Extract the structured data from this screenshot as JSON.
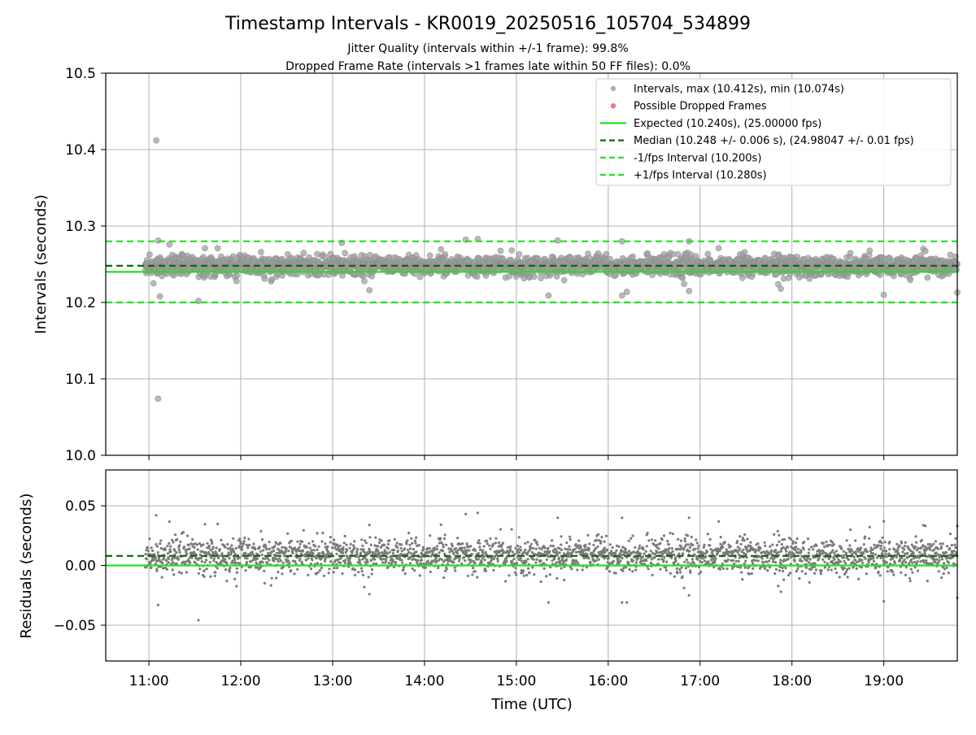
{
  "chart_data": [
    {
      "type": "scatter",
      "title": "Timestamp Intervals - KR0019_20250516_105704_534899",
      "subtitle_lines": [
        "Jitter Quality (intervals within +/-1 frame): 99.8%",
        "Dropped Frame Rate (intervals >1 frames late within 50 FF files): 0.0%"
      ],
      "xlabel": "",
      "ylabel": "Intervals (seconds)",
      "ylim": [
        10.0,
        10.5
      ],
      "yticks": [
        10.0,
        10.1,
        10.2,
        10.3,
        10.4,
        10.5
      ],
      "ytick_labels": [
        "10.0",
        "10.1",
        "10.2",
        "10.3",
        "10.4",
        "10.5"
      ],
      "x_range_hours": [
        10.53,
        19.8
      ],
      "xticks_hours": [
        11,
        12,
        13,
        14,
        15,
        16,
        17,
        18,
        19
      ],
      "grid": true,
      "legend_position": "top-right",
      "legend": [
        {
          "label": "Intervals, max (10.412s), min (10.074s)",
          "kind": "marker",
          "color": "#a0a0a0"
        },
        {
          "label": "Possible Dropped Frames",
          "kind": "marker",
          "color": "#f06060"
        },
        {
          "label": "Expected (10.240s), (25.00000 fps)",
          "kind": "solid",
          "color": "#22e022"
        },
        {
          "label": "Median (10.248 +/- 0.006 s), (24.98047 +/- 0.01 fps)",
          "kind": "dashed",
          "color": "#0b6b0b"
        },
        {
          "label": "-1/fps Interval (10.200s)",
          "kind": "dashed",
          "color": "#22e022"
        },
        {
          "label": "+1/fps Interval (10.280s)",
          "kind": "dashed",
          "color": "#22e022"
        }
      ],
      "lines": {
        "expected": 10.24,
        "median": 10.248,
        "minus_one": 10.2,
        "plus_one": 10.28
      },
      "series_description": {
        "start_hour": 10.96,
        "end_hour": 19.8,
        "center": 10.248,
        "spread": 0.006,
        "max": 10.412,
        "min": 10.074,
        "notable_points": [
          {
            "x": 11.08,
            "y": 10.412
          },
          {
            "x": 11.1,
            "y": 10.074
          },
          {
            "x": 11.1,
            "y": 10.281
          },
          {
            "x": 11.12,
            "y": 10.208
          },
          {
            "x": 11.05,
            "y": 10.225
          },
          {
            "x": 14.45,
            "y": 10.282
          },
          {
            "x": 14.58,
            "y": 10.283
          },
          {
            "x": 15.45,
            "y": 10.281
          },
          {
            "x": 16.15,
            "y": 10.28
          },
          {
            "x": 16.88,
            "y": 10.28
          },
          {
            "x": 13.1,
            "y": 10.278
          },
          {
            "x": 13.4,
            "y": 10.216
          },
          {
            "x": 15.35,
            "y": 10.209
          },
          {
            "x": 16.15,
            "y": 10.209
          },
          {
            "x": 16.88,
            "y": 10.215
          },
          {
            "x": 17.88,
            "y": 10.218
          },
          {
            "x": 19.0,
            "y": 10.21
          },
          {
            "x": 19.8,
            "y": 10.213
          }
        ]
      }
    },
    {
      "type": "scatter",
      "xlabel": "Time (UTC)",
      "ylabel": "Residuals (seconds)",
      "ylim": [
        -0.08,
        0.08
      ],
      "yticks": [
        -0.05,
        0.0,
        0.05
      ],
      "ytick_labels": [
        "−0.05",
        "0.00",
        "0.05"
      ],
      "x_range_hours": [
        10.53,
        19.8
      ],
      "xticks_hours": [
        11,
        12,
        13,
        14,
        15,
        16,
        17,
        18,
        19
      ],
      "xtick_labels": [
        "11:00",
        "12:00",
        "13:00",
        "14:00",
        "15:00",
        "16:00",
        "17:00",
        "18:00",
        "19:00"
      ],
      "grid": true,
      "lines": {
        "zero": 0.0,
        "median_offset": 0.008
      },
      "series_description": {
        "center": 0.008,
        "spread": 0.006,
        "notable_points": [
          {
            "x": 11.08,
            "y": 0.042
          },
          {
            "x": 11.1,
            "y": -0.033
          },
          {
            "x": 14.45,
            "y": 0.043
          },
          {
            "x": 14.58,
            "y": 0.044
          },
          {
            "x": 15.45,
            "y": 0.04
          },
          {
            "x": 16.15,
            "y": 0.04
          },
          {
            "x": 16.88,
            "y": 0.04
          },
          {
            "x": 16.15,
            "y": -0.031
          },
          {
            "x": 15.35,
            "y": -0.031
          },
          {
            "x": 16.88,
            "y": -0.025
          },
          {
            "x": 17.88,
            "y": -0.022
          },
          {
            "x": 19.0,
            "y": -0.03
          },
          {
            "x": 19.0,
            "y": 0.037
          },
          {
            "x": 19.8,
            "y": -0.027
          },
          {
            "x": 19.8,
            "y": 0.033
          },
          {
            "x": 13.4,
            "y": 0.034
          },
          {
            "x": 13.4,
            "y": -0.024
          }
        ]
      }
    }
  ],
  "colors": {
    "interval_points": "#a0a0a0",
    "interval_edge": "#8a8a8a",
    "residual_points": "#7a7a7a",
    "dropped": "#f06060",
    "expected": "#22e022",
    "median": "#0b6b0b",
    "fps_bounds": "#22e022",
    "grid": "#b0b0b0"
  }
}
